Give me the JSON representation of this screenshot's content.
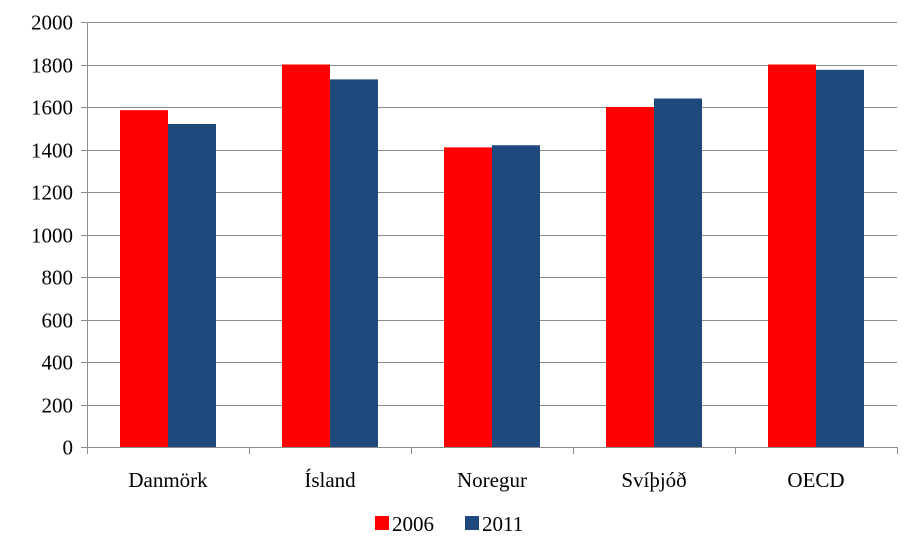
{
  "chart_data": {
    "type": "bar",
    "title": "",
    "xlabel": "",
    "ylabel": "",
    "categories": [
      "Danmörk",
      "Ísland",
      "Noregur",
      "Svíþjóð",
      "OECD"
    ],
    "series": [
      {
        "name": "2006",
        "color": "#ff0000",
        "values": [
          1585,
          1800,
          1410,
          1600,
          1800
        ]
      },
      {
        "name": "2011",
        "color": "#1f497d",
        "values": [
          1520,
          1730,
          1420,
          1640,
          1775
        ]
      }
    ],
    "ylim": [
      0,
      2000
    ],
    "yticks": [
      "0",
      "200",
      "400",
      "600",
      "800",
      "1000",
      "1200",
      "1400",
      "1600",
      "1800",
      "2000"
    ],
    "grid": true,
    "legend_position": "bottom"
  }
}
